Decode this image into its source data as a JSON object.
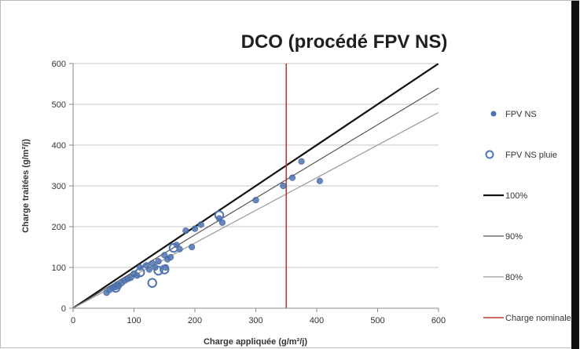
{
  "chart_data": {
    "type": "scatter",
    "title": "DCO (procédé FPV NS)",
    "xlabel": "Charge appliquée (g/m²/j)",
    "ylabel": "Charge traitées (g/m²/j)",
    "xlim": [
      0,
      600
    ],
    "ylim": [
      0,
      600
    ],
    "x_ticks": [
      "0",
      "100",
      "200",
      "300",
      "400",
      "500",
      "600"
    ],
    "y_ticks": [
      "0",
      "100",
      "200",
      "300",
      "400",
      "500",
      "600"
    ],
    "grid": "horizontal",
    "legend_position": "right",
    "series": [
      {
        "name": "FPV NS",
        "kind": "filled-marker",
        "color": "#4f74b3",
        "points": [
          [
            55,
            38
          ],
          [
            60,
            45
          ],
          [
            65,
            50
          ],
          [
            70,
            52
          ],
          [
            72,
            58
          ],
          [
            75,
            55
          ],
          [
            80,
            62
          ],
          [
            85,
            68
          ],
          [
            90,
            72
          ],
          [
            95,
            75
          ],
          [
            100,
            85
          ],
          [
            105,
            80
          ],
          [
            110,
            100
          ],
          [
            120,
            105
          ],
          [
            125,
            95
          ],
          [
            130,
            110
          ],
          [
            135,
            100
          ],
          [
            140,
            115
          ],
          [
            150,
            130
          ],
          [
            152,
            100
          ],
          [
            155,
            120
          ],
          [
            160,
            125
          ],
          [
            170,
            155
          ],
          [
            175,
            145
          ],
          [
            185,
            190
          ],
          [
            195,
            150
          ],
          [
            200,
            195
          ],
          [
            210,
            205
          ],
          [
            240,
            220
          ],
          [
            245,
            210
          ],
          [
            300,
            265
          ],
          [
            345,
            300
          ],
          [
            360,
            320
          ],
          [
            375,
            360
          ],
          [
            405,
            312
          ]
        ]
      },
      {
        "name": "FPV NS pluie",
        "kind": "open-marker",
        "color": "#4f74b3",
        "points": [
          [
            70,
            50
          ],
          [
            110,
            88
          ],
          [
            130,
            62
          ],
          [
            140,
            92
          ],
          [
            150,
            95
          ],
          [
            165,
            148
          ],
          [
            240,
            228
          ]
        ]
      },
      {
        "name": "100%",
        "kind": "line",
        "color": "#111111",
        "slope": 1.0
      },
      {
        "name": "90%",
        "kind": "line",
        "color": "#555555",
        "slope": 0.9
      },
      {
        "name": "80%",
        "kind": "line",
        "color": "#999999",
        "slope": 0.8
      },
      {
        "name": "Charge nominale",
        "kind": "vline",
        "color": "#c0392b",
        "x": 350
      }
    ]
  }
}
